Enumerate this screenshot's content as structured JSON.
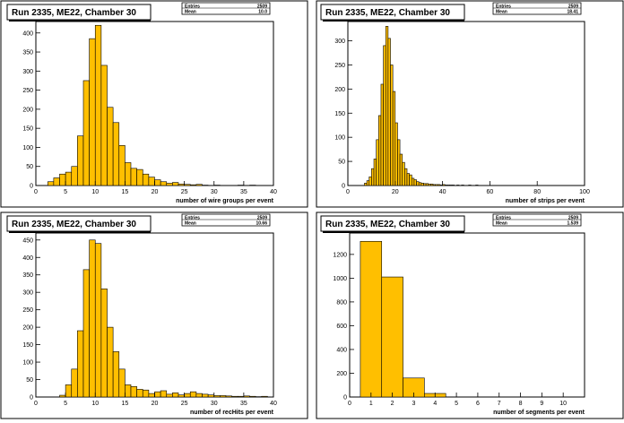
{
  "colors": {
    "fill": "#ffbf00",
    "stroke": "#000000",
    "panel_bg": "#ffffff"
  },
  "panels": [
    {
      "title": "Run 2335, ME22, Chamber 30",
      "stats": {
        "label_entries": "Entries",
        "value_entries": "2509",
        "label_mean": "Mean",
        "value_mean": "10.0"
      },
      "xlabel": "number of wire groups per event",
      "chart_data": {
        "type": "bar",
        "xlim": [
          0,
          40
        ],
        "ylim": [
          0,
          430
        ],
        "xticks": [
          0,
          5,
          10,
          15,
          20,
          25,
          30,
          35,
          40
        ],
        "yticks": [
          0,
          50,
          100,
          150,
          200,
          250,
          300,
          350,
          400
        ],
        "bin_edges": [
          2,
          3,
          4,
          5,
          6,
          7,
          8,
          9,
          10,
          11,
          12,
          13,
          14,
          15,
          16,
          17,
          18,
          19,
          20,
          21,
          22,
          23,
          24,
          25,
          26,
          27,
          28,
          29,
          30,
          31,
          32,
          33,
          34,
          35,
          36,
          37,
          38
        ],
        "values": [
          10,
          20,
          30,
          35,
          50,
          130,
          275,
          385,
          420,
          315,
          205,
          165,
          105,
          60,
          45,
          42,
          30,
          22,
          15,
          10,
          6,
          8,
          4,
          3,
          2,
          3,
          1,
          0,
          1,
          0,
          0,
          0,
          1,
          0,
          1,
          0
        ]
      }
    },
    {
      "title": "Run 2335, ME22, Chamber 30",
      "stats": {
        "label_entries": "Entries",
        "value_entries": "2509",
        "label_mean": "Mean",
        "value_mean": "18.41"
      },
      "xlabel": "number of strips per event",
      "chart_data": {
        "type": "bar",
        "xlim": [
          0,
          100
        ],
        "ylim": [
          0,
          340
        ],
        "xticks": [
          0,
          20,
          40,
          60,
          80,
          100
        ],
        "yticks": [
          0,
          50,
          100,
          150,
          200,
          250,
          300
        ],
        "bin_edges": [
          7,
          8,
          9,
          10,
          11,
          12,
          13,
          14,
          15,
          16,
          17,
          18,
          19,
          20,
          21,
          22,
          23,
          24,
          25,
          26,
          27,
          28,
          29,
          30,
          31,
          32,
          33,
          34,
          35,
          36,
          37,
          38,
          39,
          40,
          41,
          42,
          43,
          44,
          45,
          46,
          47,
          48,
          49,
          50,
          51,
          52,
          53,
          54,
          55
        ],
        "values": [
          5,
          10,
          18,
          35,
          55,
          95,
          145,
          210,
          290,
          330,
          305,
          250,
          195,
          130,
          95,
          65,
          48,
          35,
          25,
          22,
          15,
          12,
          8,
          6,
          5,
          4,
          4,
          3,
          3,
          2,
          2,
          2,
          1,
          2,
          1,
          1,
          1,
          1,
          0,
          1,
          0,
          1,
          0,
          0,
          1,
          0,
          0,
          1
        ]
      }
    },
    {
      "title": "Run 2335, ME22, Chamber 30",
      "stats": {
        "label_entries": "Entries",
        "value_entries": "2509",
        "label_mean": "Mean",
        "value_mean": "10.66"
      },
      "xlabel": "number of recHits per event",
      "chart_data": {
        "type": "bar",
        "xlim": [
          0,
          40
        ],
        "ylim": [
          0,
          470
        ],
        "xticks": [
          0,
          5,
          10,
          15,
          20,
          25,
          30,
          35,
          40
        ],
        "yticks": [
          0,
          50,
          100,
          150,
          200,
          250,
          300,
          350,
          400,
          450
        ],
        "bin_edges": [
          4,
          5,
          6,
          7,
          8,
          9,
          10,
          11,
          12,
          13,
          14,
          15,
          16,
          17,
          18,
          19,
          20,
          21,
          22,
          23,
          24,
          25,
          26,
          27,
          28,
          29,
          30,
          31,
          32,
          33,
          34,
          35,
          36,
          37,
          38,
          39,
          40
        ],
        "values": [
          5,
          35,
          80,
          190,
          365,
          450,
          440,
          310,
          200,
          130,
          80,
          35,
          30,
          22,
          20,
          10,
          15,
          18,
          8,
          12,
          6,
          10,
          15,
          10,
          8,
          6,
          4,
          4,
          3,
          2,
          2,
          3,
          2,
          1,
          2,
          0
        ]
      }
    },
    {
      "title": "Run 2335, ME22, Chamber 30",
      "stats": {
        "label_entries": "Entries",
        "value_entries": "2509",
        "label_mean": "Mean",
        "value_mean": "1.539"
      },
      "xlabel": "number of segments per event",
      "chart_data": {
        "type": "bar",
        "xlim": [
          0,
          11
        ],
        "ylim": [
          0,
          1380
        ],
        "xticks": [
          0,
          1,
          2,
          3,
          4,
          5,
          6,
          7,
          8,
          9,
          10
        ],
        "yticks": [
          0,
          200,
          400,
          600,
          800,
          1000,
          1200
        ],
        "bin_edges": [
          0.5,
          1.5,
          2.5,
          3.5,
          4.5
        ],
        "values": [
          1310,
          1010,
          160,
          30
        ]
      }
    }
  ]
}
